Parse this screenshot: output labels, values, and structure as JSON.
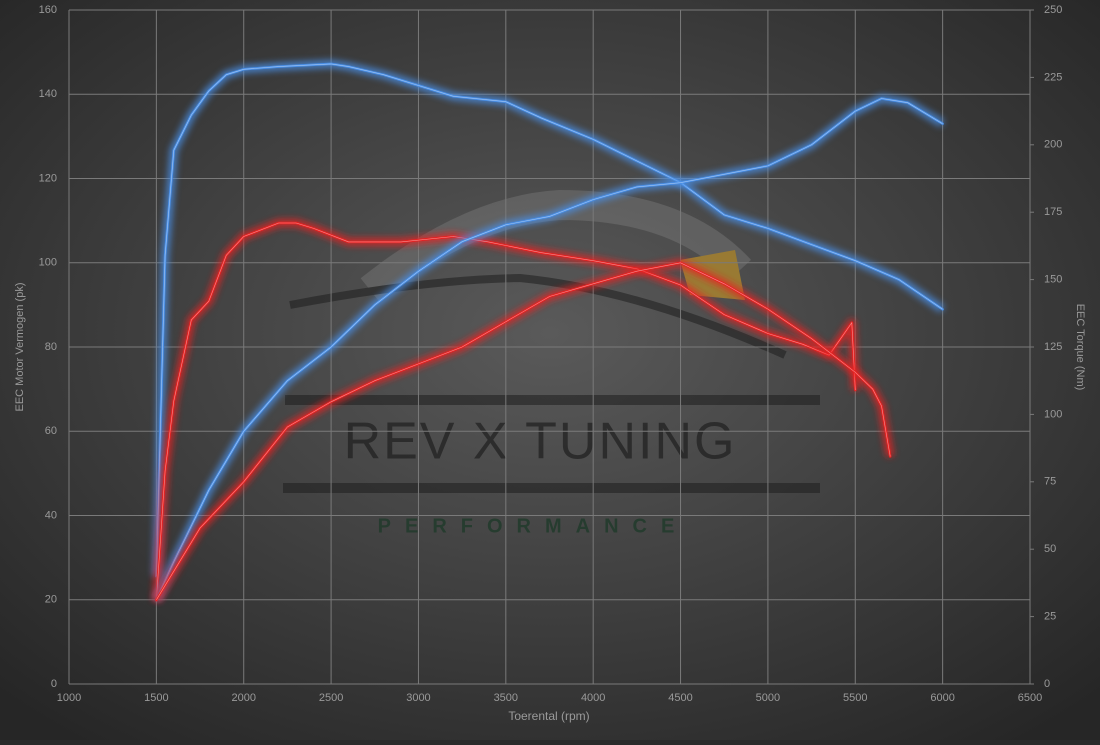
{
  "chart_data": {
    "type": "line",
    "xlabel": "Toerental (rpm)",
    "ylabel": "EEC Motor Vermogen (pk)",
    "y2label": "EEC Torque (Nm)",
    "watermark": "REV X TUNING",
    "watermark_subtitle": "PERFORMANCE",
    "xlim": [
      1000,
      6500
    ],
    "xticks": [
      1000,
      1500,
      2000,
      2500,
      3000,
      3500,
      4000,
      4500,
      5000,
      5500,
      6000,
      6500
    ],
    "ylim": [
      0,
      160
    ],
    "yticks": [
      0,
      20,
      40,
      60,
      80,
      100,
      120,
      140,
      160
    ],
    "y2lim": [
      0,
      250
    ],
    "y2ticks": [
      0,
      25,
      50,
      75,
      100,
      125,
      150,
      175,
      200,
      225,
      250
    ],
    "grid": true,
    "series": [
      {
        "color": "#4a8fe6",
        "axis": "y2",
        "x": [
          1500,
          1550,
          1600,
          1700,
          1800,
          1900,
          2000,
          2200,
          2500,
          2600,
          2800,
          3000,
          3200,
          3500,
          3700,
          4000,
          4250,
          4500,
          4750,
          5000,
          5250,
          5500,
          5750,
          6000
        ],
        "values": [
          40,
          159,
          198,
          211,
          220,
          226,
          228,
          229,
          230,
          229,
          226,
          222,
          218,
          216,
          210,
          202,
          194,
          186,
          174,
          169,
          163,
          157,
          150,
          139
        ]
      },
      {
        "color": "#e82222",
        "axis": "y2",
        "x": [
          1500,
          1550,
          1600,
          1700,
          1800,
          1900,
          2000,
          2200,
          2300,
          2400,
          2600,
          2900,
          3200,
          3400,
          3700,
          4000,
          4250,
          4500,
          4750,
          5000,
          5200,
          5350,
          5480,
          5500
        ],
        "values": [
          31,
          79,
          105,
          135,
          142,
          159,
          166,
          171,
          171,
          169,
          164,
          164,
          166,
          164,
          160,
          157,
          154,
          148,
          137,
          130,
          126,
          122,
          134,
          109
        ]
      },
      {
        "color": "#4a8fe6",
        "x": [
          1500,
          1600,
          1800,
          2000,
          2250,
          2500,
          2750,
          3000,
          3250,
          3500,
          3750,
          4000,
          4250,
          4500,
          4750,
          5000,
          5250,
          5500,
          5650,
          5800,
          6000
        ],
        "values": [
          20,
          29,
          46,
          60,
          72,
          80,
          90,
          98,
          105,
          109,
          111,
          115,
          118,
          119,
          121,
          123,
          128,
          136,
          139,
          138,
          133
        ]
      },
      {
        "color": "#e82222",
        "x": [
          1500,
          1750,
          2000,
          2250,
          2500,
          2750,
          3000,
          3250,
          3500,
          3750,
          4000,
          4250,
          4500,
          4750,
          5000,
          5250,
          5500,
          5600,
          5650,
          5700
        ],
        "values": [
          20,
          37,
          48,
          61,
          67,
          72,
          76,
          80,
          86,
          92,
          95,
          98,
          100,
          95,
          89,
          82,
          74,
          70,
          66,
          54
        ]
      }
    ]
  }
}
